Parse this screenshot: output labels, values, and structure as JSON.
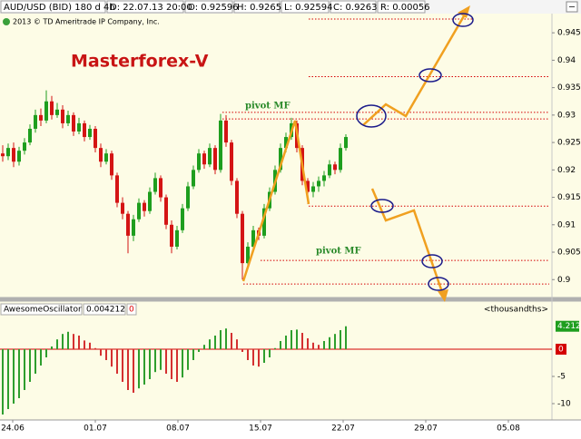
{
  "header": {
    "symbol": "AUD/USD (BID) 180 d 4h",
    "date": "D: 22.07.13 20:00",
    "open": "O: 0.92596",
    "high": "H: 0.9265",
    "low": "L: 0.92594",
    "close": "C: 0.9263",
    "range": "R: 0.00056",
    "copyright": "2013 © TD Ameritrade IP Company, Inc."
  },
  "chart_data": [
    {
      "type": "candlestick",
      "title": "Masterforex-V",
      "annotations": [
        "pivot MF",
        "pivot MF"
      ],
      "colors": {
        "up": "#1e9e1e",
        "down": "#d41414",
        "level": "#d40000"
      },
      "ylim": [
        0.8969,
        0.9485
      ],
      "yticks": [
        0.9,
        0.905,
        0.91,
        0.915,
        0.92,
        0.925,
        0.93,
        0.935,
        0.94,
        0.945
      ],
      "levels": [
        0.9475,
        0.937,
        0.9305,
        0.9293,
        0.9134,
        0.9035,
        0.8992
      ],
      "candles": [
        [
          0.923,
          0.9245,
          0.9215,
          0.9225
        ],
        [
          0.9225,
          0.9248,
          0.9218,
          0.924
        ],
        [
          0.924,
          0.925,
          0.9205,
          0.9215
        ],
        [
          0.9215,
          0.9242,
          0.9208,
          0.9235
        ],
        [
          0.9235,
          0.9258,
          0.9228,
          0.925
        ],
        [
          0.925,
          0.9283,
          0.9245,
          0.9275
        ],
        [
          0.9275,
          0.931,
          0.9268,
          0.93
        ],
        [
          0.93,
          0.9312,
          0.928,
          0.929
        ],
        [
          0.929,
          0.9345,
          0.9285,
          0.9325
        ],
        [
          0.9325,
          0.9335,
          0.9292,
          0.93
        ],
        [
          0.93,
          0.9322,
          0.9295,
          0.931
        ],
        [
          0.931,
          0.9318,
          0.9276,
          0.9285
        ],
        [
          0.9285,
          0.9308,
          0.928,
          0.93
        ],
        [
          0.93,
          0.9305,
          0.9262,
          0.927
        ],
        [
          0.927,
          0.9295,
          0.9265,
          0.9285
        ],
        [
          0.9285,
          0.929,
          0.9252,
          0.926
        ],
        [
          0.926,
          0.9282,
          0.9255,
          0.9275
        ],
        [
          0.9275,
          0.928,
          0.9232,
          0.924
        ],
        [
          0.924,
          0.9248,
          0.9205,
          0.9215
        ],
        [
          0.9215,
          0.9238,
          0.921,
          0.923
        ],
        [
          0.923,
          0.9235,
          0.9182,
          0.919
        ],
        [
          0.919,
          0.9195,
          0.9132,
          0.914
        ],
        [
          0.914,
          0.915,
          0.911,
          0.912
        ],
        [
          0.912,
          0.9125,
          0.9048,
          0.908
        ],
        [
          0.908,
          0.9118,
          0.907,
          0.911
        ],
        [
          0.911,
          0.9148,
          0.9105,
          0.914
        ],
        [
          0.914,
          0.9145,
          0.9115,
          0.9125
        ],
        [
          0.9125,
          0.9168,
          0.912,
          0.916
        ],
        [
          0.916,
          0.9195,
          0.9155,
          0.9185
        ],
        [
          0.9185,
          0.919,
          0.9142,
          0.915
        ],
        [
          0.915,
          0.9155,
          0.9092,
          0.91
        ],
        [
          0.91,
          0.9108,
          0.9048,
          0.906
        ],
        [
          0.906,
          0.9098,
          0.9055,
          0.909
        ],
        [
          0.909,
          0.9138,
          0.9085,
          0.913
        ],
        [
          0.913,
          0.9178,
          0.9125,
          0.917
        ],
        [
          0.917,
          0.9208,
          0.9165,
          0.92
        ],
        [
          0.92,
          0.9238,
          0.9195,
          0.923
        ],
        [
          0.923,
          0.9235,
          0.9202,
          0.921
        ],
        [
          0.921,
          0.9248,
          0.9205,
          0.924
        ],
        [
          0.924,
          0.9245,
          0.9192,
          0.92
        ],
        [
          0.92,
          0.9302,
          0.9195,
          0.929
        ],
        [
          0.929,
          0.93,
          0.9242,
          0.925
        ],
        [
          0.925,
          0.9255,
          0.9172,
          0.918
        ],
        [
          0.918,
          0.9185,
          0.9112,
          0.912
        ],
        [
          0.912,
          0.9125,
          0.9,
          0.903
        ],
        [
          0.903,
          0.9068,
          0.9022,
          0.906
        ],
        [
          0.906,
          0.9098,
          0.9055,
          0.909
        ],
        [
          0.909,
          0.9095,
          0.9072,
          0.908
        ],
        [
          0.908,
          0.9138,
          0.9075,
          0.913
        ],
        [
          0.913,
          0.9168,
          0.9125,
          0.916
        ],
        [
          0.916,
          0.9208,
          0.9155,
          0.92
        ],
        [
          0.92,
          0.9248,
          0.9195,
          0.924
        ],
        [
          0.924,
          0.9268,
          0.9232,
          0.926
        ],
        [
          0.926,
          0.9295,
          0.9255,
          0.9285
        ],
        [
          0.9285,
          0.929,
          0.9232,
          0.924
        ],
        [
          0.924,
          0.9245,
          0.9172,
          0.918
        ],
        [
          0.918,
          0.9185,
          0.9138,
          0.916
        ],
        [
          0.916,
          0.9178,
          0.915,
          0.917
        ],
        [
          0.917,
          0.9188,
          0.916,
          0.918
        ],
        [
          0.918,
          0.9198,
          0.917,
          0.919
        ],
        [
          0.919,
          0.9218,
          0.9185,
          0.921
        ],
        [
          0.921,
          0.9215,
          0.9192,
          0.92
        ],
        [
          0.92,
          0.9248,
          0.9195,
          0.924
        ],
        [
          0.924,
          0.9265,
          0.9235,
          0.926
        ]
      ]
    },
    {
      "type": "bar",
      "header": [
        "AwesomeOscillator",
        "0.004212",
        "0",
        "<thousandths>"
      ],
      "colors": {
        "up": "#2e9e2e",
        "down": "#d43030",
        "zero": "#d40000",
        "last": "#1e9e1e"
      },
      "ylim": [
        -13,
        5.83
      ],
      "yticks": [
        -5,
        -10
      ],
      "zero": 0,
      "values": [
        -12,
        -11,
        -10,
        -9,
        -7.5,
        -6,
        -4.5,
        -3,
        -1.5,
        0.5,
        1.8,
        2.8,
        3.2,
        2.8,
        2.5,
        1.6,
        1.2,
        0.2,
        -1.2,
        -2,
        -3.2,
        -4.5,
        -6,
        -7.5,
        -8,
        -7.2,
        -6.5,
        -5.5,
        -4.2,
        -3.8,
        -4.5,
        -5.5,
        -6,
        -5.2,
        -3.8,
        -2,
        -0.5,
        0.8,
        1.8,
        2.5,
        3.5,
        3.8,
        3,
        1.8,
        -0.5,
        -2,
        -3,
        -3.2,
        -2.5,
        -1.5,
        0.2,
        1.5,
        2.5,
        3.5,
        3.6,
        3,
        2,
        1.2,
        0.8,
        1.5,
        2.2,
        2.8,
        3.5,
        4.212
      ],
      "x_labels": [
        "24.06",
        "01.07",
        "08.07",
        "15.07",
        "22.07",
        "29.07",
        "05.08"
      ]
    }
  ]
}
